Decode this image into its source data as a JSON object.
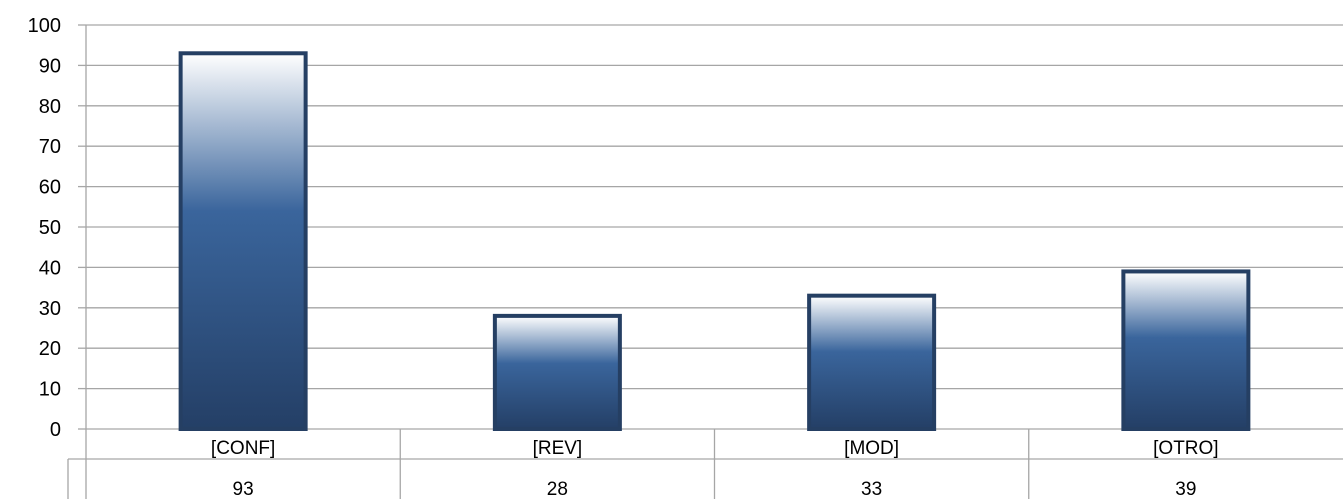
{
  "chart_data": {
    "type": "bar",
    "categories": [
      "[CONF]",
      "[REV]",
      "[MOD]",
      "[OTRO]"
    ],
    "values": [
      93,
      28,
      33,
      39
    ],
    "title": "",
    "xlabel": "",
    "ylabel": "",
    "ylim": [
      0,
      100
    ],
    "yticks": [
      0,
      10,
      20,
      30,
      40,
      50,
      60,
      70,
      80,
      90,
      100
    ],
    "grid": true,
    "legend": "none",
    "data_table": true,
    "colors": {
      "bar_border": "#253f63",
      "bar_dark": "#2a4a76",
      "bar_mid": "#3a659c",
      "bar_light": "#ffffff",
      "gridline": "#a6a6a6"
    }
  }
}
